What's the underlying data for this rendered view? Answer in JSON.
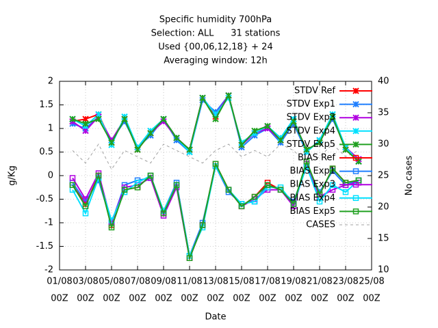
{
  "chart_data": {
    "type": "line",
    "title": [
      "Specific humidity 700hPa",
      "Selection: ALL      31 stations",
      "Used {00,06,12,18} + 24",
      "Averaging window: 12h"
    ],
    "xlabel": "Date",
    "ylabel": "g/Kg",
    "y2label": "No cases",
    "xlim": [
      0,
      24
    ],
    "ylim": [
      -2,
      2
    ],
    "y2lim": [
      10,
      40
    ],
    "xticks": [
      {
        "value": 0,
        "label": [
          "01/08",
          "00Z"
        ]
      },
      {
        "value": 2,
        "label": [
          "03/08",
          "00Z"
        ]
      },
      {
        "value": 4,
        "label": [
          "05/08",
          "00Z"
        ]
      },
      {
        "value": 6,
        "label": [
          "07/08",
          "00Z"
        ]
      },
      {
        "value": 8,
        "label": [
          "09/08",
          "00Z"
        ]
      },
      {
        "value": 10,
        "label": [
          "11/08",
          "00Z"
        ]
      },
      {
        "value": 12,
        "label": [
          "13/08",
          "00Z"
        ]
      },
      {
        "value": 14,
        "label": [
          "15/08",
          "00Z"
        ]
      },
      {
        "value": 16,
        "label": [
          "17/08",
          "00Z"
        ]
      },
      {
        "value": 18,
        "label": [
          "19/08",
          "00Z"
        ]
      },
      {
        "value": 20,
        "label": [
          "21/08",
          "00Z"
        ]
      },
      {
        "value": 22,
        "label": [
          "23/08",
          "00Z"
        ]
      },
      {
        "value": 24,
        "label": [
          "25/08",
          "00Z"
        ]
      }
    ],
    "yticks": [
      -2,
      -1.5,
      -1,
      -0.5,
      0,
      0.5,
      1,
      1.5,
      2
    ],
    "y2ticks": [
      10,
      15,
      20,
      25,
      30,
      35,
      40
    ],
    "grid": true,
    "x": [
      1,
      2,
      3,
      4,
      5,
      6,
      7,
      8,
      9,
      10,
      11,
      12,
      13,
      14,
      15,
      16,
      17,
      18,
      19,
      20,
      21,
      22,
      23
    ],
    "series": [
      {
        "name": "STDV Ref",
        "color": "#ff0000",
        "marker": "x",
        "values": [
          1.15,
          1.2,
          1.3,
          0.7,
          1.2,
          0.55,
          0.9,
          1.2,
          0.8,
          0.55,
          1.65,
          1.25,
          1.7,
          0.65,
          0.9,
          1.05,
          0.75,
          1.15,
          0.55,
          0.7,
          1.25,
          0.55,
          0.3
        ]
      },
      {
        "name": "STDV Exp1",
        "color": "#1f7fff",
        "marker": "x",
        "values": [
          1.1,
          1.0,
          1.25,
          0.75,
          1.15,
          0.6,
          0.85,
          1.2,
          0.75,
          0.5,
          1.6,
          1.35,
          1.7,
          0.6,
          0.85,
          1.0,
          0.7,
          1.1,
          0.5,
          0.75,
          1.2,
          0.6,
          0.3
        ]
      },
      {
        "name": "STDV Exp3",
        "color": "#b000e0",
        "marker": "x",
        "values": [
          1.15,
          0.95,
          1.25,
          0.75,
          1.2,
          0.6,
          0.9,
          1.15,
          0.8,
          0.55,
          1.65,
          1.3,
          1.7,
          0.65,
          0.9,
          1.0,
          0.75,
          1.15,
          0.55,
          0.7,
          1.25,
          0.6,
          0.35
        ]
      },
      {
        "name": "STDV Exp4",
        "color": "#00e0ff",
        "marker": "x",
        "values": [
          1.2,
          1.05,
          1.3,
          0.65,
          1.25,
          0.6,
          0.95,
          1.2,
          0.8,
          0.5,
          1.65,
          1.3,
          1.65,
          0.7,
          0.9,
          1.05,
          0.8,
          1.2,
          0.5,
          0.75,
          1.3,
          0.6,
          0.3
        ]
      },
      {
        "name": "STDV Exp5",
        "color": "#20a020",
        "marker": "x",
        "values": [
          1.2,
          1.1,
          1.2,
          0.7,
          1.2,
          0.55,
          0.9,
          1.2,
          0.8,
          0.55,
          1.65,
          1.2,
          1.7,
          0.65,
          0.95,
          1.05,
          0.75,
          1.15,
          0.55,
          0.7,
          1.25,
          0.55,
          0.3
        ]
      },
      {
        "name": "BIAS Ref",
        "color": "#ff0000",
        "marker": "square",
        "values": [
          -0.2,
          -0.6,
          0.0,
          -1.05,
          -0.3,
          -0.25,
          0.0,
          -0.8,
          -0.2,
          -1.75,
          -1.05,
          0.25,
          -0.3,
          -0.65,
          -0.45,
          -0.15,
          -0.3,
          -0.6,
          0.25,
          -0.4,
          0.15,
          -0.15,
          -0.1
        ]
      },
      {
        "name": "BIAS Exp1",
        "color": "#1f7fff",
        "marker": "square",
        "values": [
          -0.15,
          -0.55,
          -0.1,
          -1.0,
          -0.2,
          -0.1,
          -0.05,
          -0.75,
          -0.15,
          -1.7,
          -1.0,
          0.2,
          -0.35,
          -0.6,
          -0.55,
          -0.2,
          -0.3,
          -0.55,
          0.2,
          -0.35,
          0.1,
          -0.2,
          -0.1
        ]
      },
      {
        "name": "BIAS Exp3",
        "color": "#b000e0",
        "marker": "square",
        "values": [
          -0.05,
          -0.5,
          0.05,
          -1.0,
          -0.25,
          -0.2,
          -0.05,
          -0.85,
          -0.25,
          -1.75,
          -1.05,
          0.2,
          -0.3,
          -0.65,
          -0.5,
          -0.3,
          -0.3,
          -0.65,
          0.25,
          -0.45,
          -0.3,
          -0.2,
          -0.15
        ]
      },
      {
        "name": "BIAS Exp4",
        "color": "#00e0ff",
        "marker": "square",
        "values": [
          -0.3,
          -0.8,
          -0.05,
          -0.95,
          -0.35,
          -0.15,
          0.0,
          -0.75,
          -0.2,
          -1.7,
          -1.1,
          0.2,
          -0.3,
          -0.6,
          -0.55,
          -0.25,
          -0.25,
          -0.6,
          0.2,
          -0.55,
          -0.2,
          -0.35,
          -0.1
        ]
      },
      {
        "name": "BIAS Exp5",
        "color": "#20a020",
        "marker": "square",
        "values": [
          -0.2,
          -0.65,
          0.0,
          -1.1,
          -0.3,
          -0.25,
          0.0,
          -0.8,
          -0.2,
          -1.75,
          -1.05,
          0.25,
          -0.3,
          -0.65,
          -0.45,
          -0.2,
          -0.3,
          -0.6,
          0.3,
          -0.4,
          0.15,
          -0.15,
          -0.1
        ]
      },
      {
        "name": "CASES",
        "color": "#a0a0a0",
        "marker": "none",
        "dash": true,
        "axis": "y2",
        "values": [
          29,
          27,
          30,
          26,
          29,
          28,
          27,
          30,
          29,
          28,
          27,
          29,
          30,
          28,
          29,
          28,
          30,
          29,
          27,
          28,
          30,
          28,
          29
        ]
      }
    ]
  }
}
